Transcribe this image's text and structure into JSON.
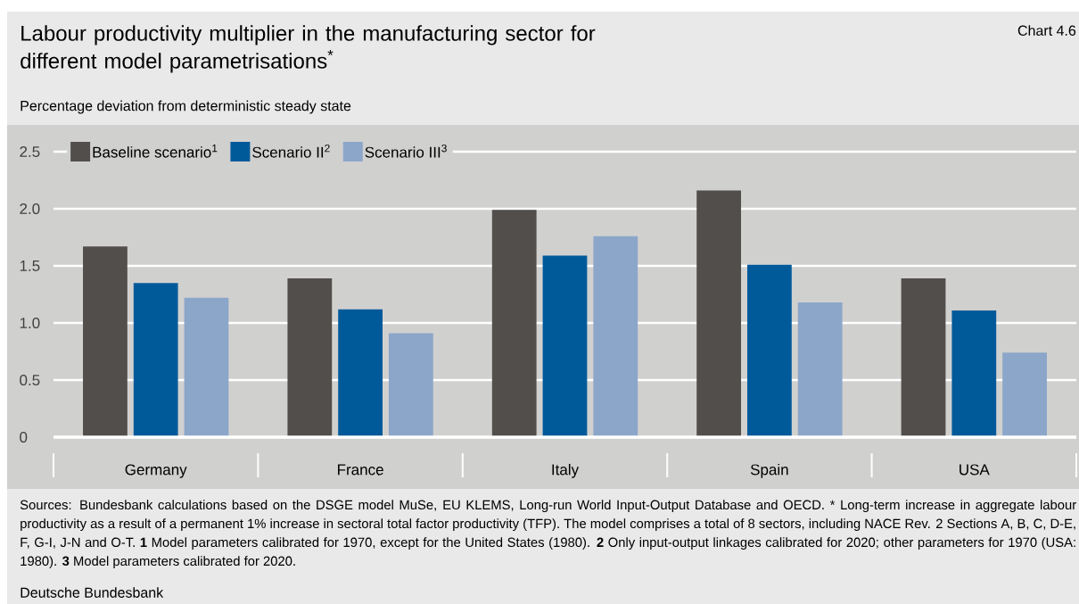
{
  "chart_data": {
    "type": "bar",
    "title": "Labour productivity multiplier in the manufacturing sector for different model parametrisations$^{*}$",
    "ylabel": "Percentage deviation from deterministic steady state",
    "categories": [
      "Germany",
      "France",
      "Italy",
      "Spain",
      "USA"
    ],
    "series": [
      {
        "name": "Baseline scenario$^{1}$",
        "color": "#524e4b",
        "values": [
          1.67,
          1.39,
          1.99,
          2.16,
          1.39
        ]
      },
      {
        "name": "Scenario II$^{2}$",
        "color": "#005a9a",
        "values": [
          1.35,
          1.12,
          1.59,
          1.51,
          1.11
        ]
      },
      {
        "name": "Scenario III$^{3}$",
        "color": "#8ca6c9",
        "values": [
          1.22,
          0.91,
          1.76,
          1.18,
          0.74
        ]
      }
    ],
    "ylim": [
      0,
      2.5
    ],
    "yticks": [
      0,
      0.5,
      {
        "value": 1,
        "label": "1.0"
      },
      1.5,
      {
        "value": 2,
        "label": "2.0"
      },
      2.5
    ],
    "grid": "y",
    "legend": "top left",
    "annotations": [
      "Chart 4.6",
      "Sources: Bundesbank calculations based on the DSGE model MuSe, EU KLEMS, Long-run World Input-Output Database and OECD.",
      "* Long-term increase in aggregate labour productivity as a result of a permanent 1% increase in sectoral total factor productivity (TFP). The model comprises a total of 8 sectors, including NACE Rev. 2 Sections A, B, C, D-E, F, G-I, J-N and O-T.",
      "**1** Model parameters calibrated for 1970, except for the United States (1980).",
      "**2** Only input-output linkages calibrated for 2020; other parameters for 1970 (USA: 1980).",
      "**3** Model parameters calibrated for 2020.",
      "Deutsche Bundesbank"
    ]
  }
}
